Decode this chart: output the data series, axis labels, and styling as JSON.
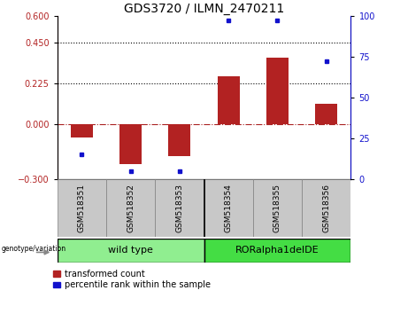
{
  "title": "GDS3720 / ILMN_2470211",
  "samples": [
    "GSM518351",
    "GSM518352",
    "GSM518353",
    "GSM518354",
    "GSM518355",
    "GSM518356"
  ],
  "red_bars": [
    -0.07,
    -0.22,
    -0.175,
    0.265,
    0.37,
    0.115
  ],
  "blue_dots": [
    15,
    5,
    5,
    97,
    97,
    72
  ],
  "ylim_left": [
    -0.3,
    0.6
  ],
  "ylim_right": [
    0,
    100
  ],
  "yticks_left": [
    -0.3,
    0,
    0.225,
    0.45,
    0.6
  ],
  "yticks_right": [
    0,
    25,
    50,
    75,
    100
  ],
  "hlines": [
    0.225,
    0.45
  ],
  "hline_zero": 0,
  "bar_color": "#b22222",
  "dot_color": "#1111cc",
  "zero_line_color": "#aa2222",
  "wild_type_color": "#90ee90",
  "ror_color": "#44dd44",
  "sample_box_color": "#c8c8c8",
  "legend_red_label": "transformed count",
  "legend_blue_label": "percentile rank within the sample",
  "genotype_label": "genotype/variation",
  "bar_width": 0.45,
  "title_fontsize": 10,
  "tick_fontsize": 7,
  "legend_fontsize": 7,
  "sample_fontsize": 6.5,
  "geno_fontsize": 8
}
